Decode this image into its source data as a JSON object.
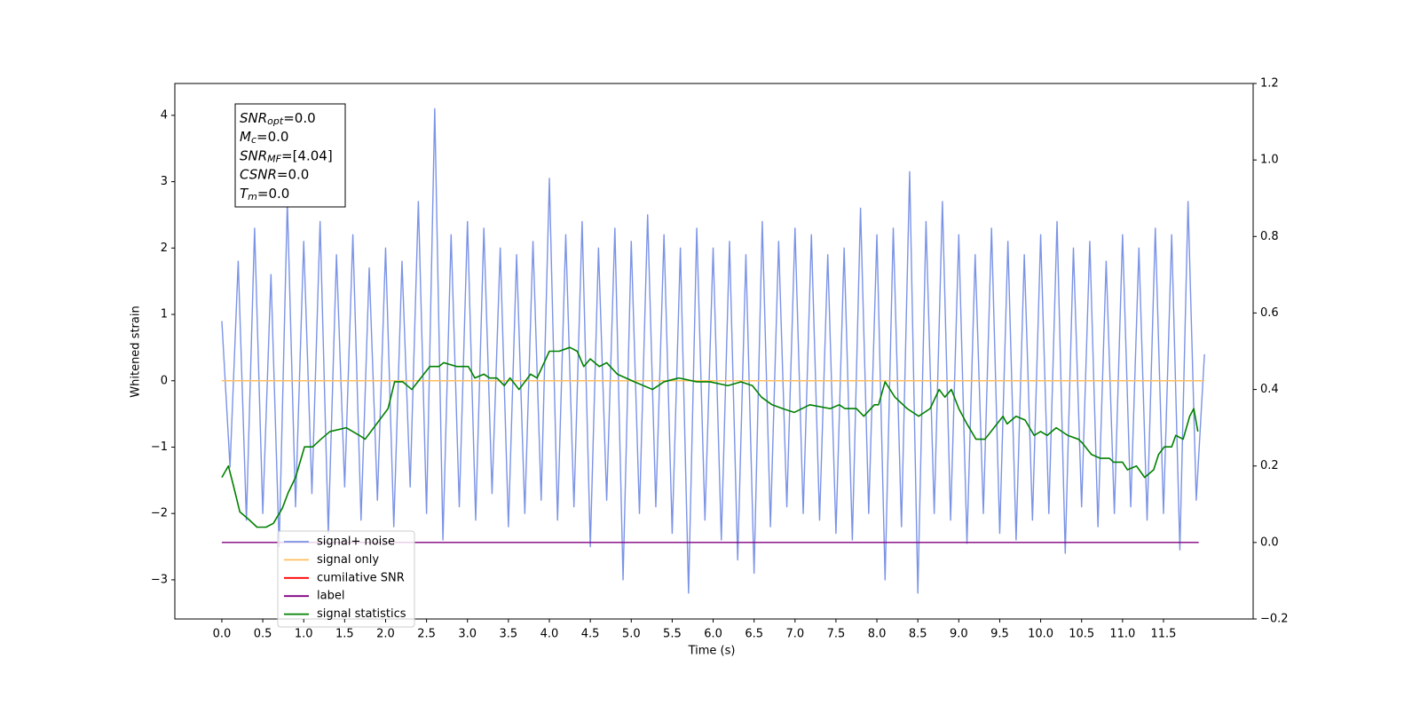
{
  "chart_data": {
    "type": "line",
    "xlabel": "Time (s)",
    "ylabel": "Whitened strain",
    "xlim": [
      -0.574,
      12.595
    ],
    "ylim": [
      -3.59,
      4.48
    ],
    "y2lim": [
      -0.2,
      1.2
    ],
    "xticks": [
      {
        "value": 0,
        "label": "0.0"
      },
      0.5,
      {
        "value": 1,
        "label": "1.0"
      },
      1.5,
      {
        "value": 2,
        "label": "2.0"
      },
      2.5,
      {
        "value": 3,
        "label": "3.0"
      },
      3.5,
      {
        "value": 4,
        "label": "4.0"
      },
      4.5,
      {
        "value": 5,
        "label": "5.0"
      },
      5.5,
      {
        "value": 6,
        "label": "6.0"
      },
      6.5,
      {
        "value": 7,
        "label": "7.0"
      },
      7.5,
      {
        "value": 8,
        "label": "8.0"
      },
      8.5,
      {
        "value": 9,
        "label": "9.0"
      },
      9.5,
      {
        "value": 10,
        "label": "10.0"
      },
      10.5,
      {
        "value": 11,
        "label": "11.0"
      },
      11.5
    ],
    "yticks": [
      {
        "value": -3,
        "label": "−3"
      },
      {
        "value": -2,
        "label": "−2"
      },
      {
        "value": -1,
        "label": "−1"
      },
      0,
      1,
      2,
      3,
      4
    ],
    "y2ticks": [
      {
        "value": -0.2,
        "label": "−0.2"
      },
      {
        "value": 0,
        "label": "0.0"
      },
      0.2,
      0.4,
      0.6,
      0.8,
      {
        "value": 1,
        "label": "1.0"
      },
      1.2
    ],
    "legend": "lower left",
    "stats_box": [
      {
        "symbol": "SNR",
        "sub": "opt",
        "text": "=0.0"
      },
      {
        "symbol": "M",
        "sub": "c",
        "text": "=0.0"
      },
      {
        "symbol": "SNR",
        "sub": "MF",
        "text": "=[4.04]"
      },
      {
        "symbol": "CSNR",
        "sub": null,
        "text": "=0.0"
      },
      {
        "symbol": "T",
        "sub": "m",
        "text": "=0.0"
      }
    ],
    "series": [
      {
        "name": "signal+ noise",
        "color": "#7b93e6",
        "axis": "y",
        "x": [
          0,
          0.1,
          0.2,
          0.3,
          0.4,
          0.5,
          0.6,
          0.7,
          0.8,
          0.9,
          1,
          1.1,
          1.2,
          1.3,
          1.4,
          1.5,
          1.6,
          1.7,
          1.8,
          1.9,
          2,
          2.1,
          2.2,
          2.3,
          2.4,
          2.5,
          2.6,
          2.7,
          2.8,
          2.9,
          3,
          3.1,
          3.2,
          3.3,
          3.4,
          3.5,
          3.6,
          3.7,
          3.8,
          3.9,
          4,
          4.1,
          4.2,
          4.3,
          4.4,
          4.5,
          4.6,
          4.7,
          4.8,
          4.9,
          5,
          5.1,
          5.2,
          5.3,
          5.4,
          5.5,
          5.6,
          5.7,
          5.8,
          5.9,
          6,
          6.1,
          6.2,
          6.3,
          6.4,
          6.5,
          6.6,
          6.7,
          6.8,
          6.9,
          7,
          7.1,
          7.2,
          7.3,
          7.4,
          7.5,
          7.6,
          7.7,
          7.8,
          7.9,
          8,
          8.1,
          8.2,
          8.3,
          8.4,
          8.5,
          8.6,
          8.7,
          8.8,
          8.9,
          9,
          9.1,
          9.2,
          9.3,
          9.4,
          9.5,
          9.6,
          9.7,
          9.8,
          9.9,
          10,
          10.1,
          10.2,
          10.3,
          10.4,
          10.5,
          10.6,
          10.7,
          10.8,
          10.9,
          11,
          11.1,
          11.2,
          11.3,
          11.4,
          11.5,
          11.6,
          11.7,
          11.8,
          11.9,
          12
        ],
        "values": [
          0.9,
          -1.3,
          1.8,
          -2.1,
          2.3,
          -2.0,
          1.6,
          -2.5,
          2.7,
          -1.9,
          2.1,
          -1.7,
          2.4,
          -2.3,
          1.9,
          -1.6,
          2.2,
          -2.1,
          1.7,
          -1.8,
          2.0,
          -2.2,
          1.8,
          -1.6,
          2.7,
          -2.0,
          4.1,
          -2.4,
          2.2,
          -1.9,
          2.4,
          -2.1,
          2.3,
          -1.7,
          2.0,
          -2.2,
          1.9,
          -2.0,
          2.1,
          -1.8,
          3.05,
          -2.1,
          2.2,
          -1.9,
          2.4,
          -2.5,
          2.0,
          -1.8,
          2.3,
          -3.0,
          2.1,
          -2.0,
          2.5,
          -1.9,
          2.2,
          -2.3,
          2.0,
          -3.2,
          2.3,
          -2.1,
          2.0,
          -2.4,
          2.1,
          -2.7,
          1.9,
          -2.9,
          2.4,
          -2.2,
          2.1,
          -1.9,
          2.3,
          -2.0,
          2.2,
          -2.1,
          1.9,
          -2.3,
          2.0,
          -2.4,
          2.6,
          -2.0,
          2.2,
          -3.0,
          2.3,
          -2.2,
          3.15,
          -3.2,
          2.4,
          -2.0,
          2.7,
          -2.1,
          2.2,
          -2.45,
          1.9,
          -2.0,
          2.3,
          -2.3,
          2.1,
          -2.4,
          1.9,
          -2.1,
          2.2,
          -2.0,
          2.4,
          -2.6,
          2.0,
          -1.9,
          2.1,
          -2.2,
          1.8,
          -2.0,
          2.2,
          -1.9,
          2.0,
          -2.1,
          2.3,
          -2.0,
          2.2,
          -2.55,
          2.7,
          -1.8,
          0.4
        ]
      },
      {
        "name": "signal only",
        "color": "#ffbf60",
        "axis": "y",
        "x": [
          0,
          12
        ],
        "values": [
          0,
          0
        ]
      },
      {
        "name": "cumilative SNR",
        "color": "#ff0000",
        "axis": "y2",
        "x": [],
        "values": []
      },
      {
        "name": "label",
        "color": "#800080",
        "axis": "y2",
        "x": [
          0,
          11.93
        ],
        "values": [
          0,
          0
        ]
      },
      {
        "name": "signal statistics",
        "color": "#008000",
        "axis": "y2",
        "x": [
          0,
          0.08,
          0.14,
          0.22,
          0.33,
          0.43,
          0.54,
          0.63,
          0.74,
          0.81,
          0.9,
          1.01,
          1.11,
          1.21,
          1.32,
          1.52,
          1.68,
          1.75,
          1.89,
          2.03,
          2.11,
          2.21,
          2.32,
          2.43,
          2.54,
          2.65,
          2.71,
          2.87,
          3.01,
          3.09,
          3.2,
          3.27,
          3.36,
          3.45,
          3.52,
          3.63,
          3.77,
          3.85,
          4.0,
          4.12,
          4.25,
          4.34,
          4.42,
          4.5,
          4.61,
          4.7,
          4.83,
          5.04,
          5.26,
          5.4,
          5.58,
          5.8,
          5.96,
          6.18,
          6.34,
          6.48,
          6.59,
          6.72,
          6.85,
          6.99,
          7.18,
          7.43,
          7.54,
          7.61,
          7.75,
          7.84,
          7.97,
          8.02,
          8.1,
          8.22,
          8.37,
          8.51,
          8.65,
          8.76,
          8.83,
          8.91,
          9.0,
          9.1,
          9.21,
          9.32,
          9.43,
          9.54,
          9.59,
          9.7,
          9.81,
          9.92,
          10.0,
          10.08,
          10.19,
          10.33,
          10.46,
          10.51,
          10.62,
          10.73,
          10.84,
          10.89,
          11.0,
          11.06,
          11.17,
          11.27,
          11.38,
          11.44,
          11.51,
          11.6,
          11.65,
          11.74,
          11.82,
          11.87,
          11.92
        ],
        "values": [
          0.17,
          0.2,
          0.15,
          0.08,
          0.06,
          0.04,
          0.04,
          0.05,
          0.09,
          0.13,
          0.17,
          0.25,
          0.25,
          0.27,
          0.29,
          0.3,
          0.28,
          0.27,
          0.31,
          0.35,
          0.42,
          0.42,
          0.4,
          0.43,
          0.46,
          0.46,
          0.47,
          0.46,
          0.46,
          0.43,
          0.44,
          0.43,
          0.43,
          0.41,
          0.43,
          0.4,
          0.44,
          0.43,
          0.5,
          0.5,
          0.51,
          0.5,
          0.46,
          0.48,
          0.46,
          0.47,
          0.44,
          0.42,
          0.4,
          0.42,
          0.43,
          0.42,
          0.42,
          0.41,
          0.42,
          0.41,
          0.38,
          0.36,
          0.35,
          0.34,
          0.36,
          0.35,
          0.36,
          0.35,
          0.35,
          0.33,
          0.36,
          0.36,
          0.42,
          0.38,
          0.35,
          0.33,
          0.35,
          0.4,
          0.38,
          0.4,
          0.35,
          0.31,
          0.27,
          0.27,
          0.3,
          0.33,
          0.31,
          0.33,
          0.32,
          0.28,
          0.29,
          0.28,
          0.3,
          0.28,
          0.27,
          0.26,
          0.23,
          0.22,
          0.22,
          0.21,
          0.21,
          0.19,
          0.2,
          0.17,
          0.19,
          0.23,
          0.25,
          0.25,
          0.28,
          0.27,
          0.33,
          0.35,
          0.29
        ]
      }
    ]
  }
}
